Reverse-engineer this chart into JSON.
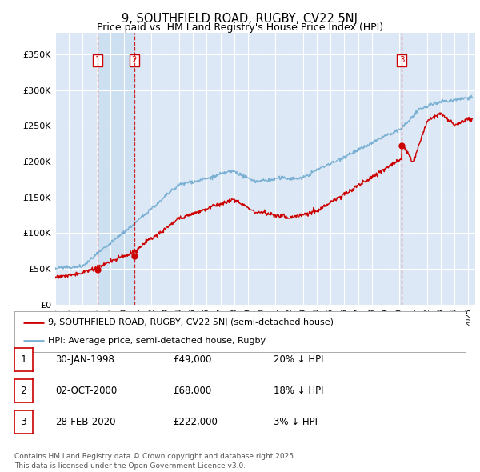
{
  "title": "9, SOUTHFIELD ROAD, RUGBY, CV22 5NJ",
  "subtitle": "Price paid vs. HM Land Registry's House Price Index (HPI)",
  "ylim": [
    0,
    380000
  ],
  "yticks": [
    0,
    50000,
    100000,
    150000,
    200000,
    250000,
    300000,
    350000
  ],
  "ytick_labels": [
    "£0",
    "£50K",
    "£100K",
    "£150K",
    "£200K",
    "£250K",
    "£300K",
    "£350K"
  ],
  "legend_label_red": "9, SOUTHFIELD ROAD, RUGBY, CV22 5NJ (semi-detached house)",
  "legend_label_blue": "HPI: Average price, semi-detached house, Rugby",
  "transactions": [
    {
      "label": "1",
      "date": "30-JAN-1998",
      "price": 49000,
      "pct": "20%",
      "year": 1998.08
    },
    {
      "label": "2",
      "date": "02-OCT-2000",
      "price": 68000,
      "pct": "18%",
      "year": 2000.75
    },
    {
      "label": "3",
      "date": "28-FEB-2020",
      "price": 222000,
      "pct": "3%",
      "year": 2020.16
    }
  ],
  "footer_line1": "Contains HM Land Registry data © Crown copyright and database right 2025.",
  "footer_line2": "This data is licensed under the Open Government Licence v3.0.",
  "bg_color": "#ffffff",
  "plot_bg_color": "#dce8f5",
  "shaded_color": "#c8ddf0",
  "red_color": "#cc0000",
  "blue_color": "#7ab0d4",
  "grid_color": "#ffffff"
}
